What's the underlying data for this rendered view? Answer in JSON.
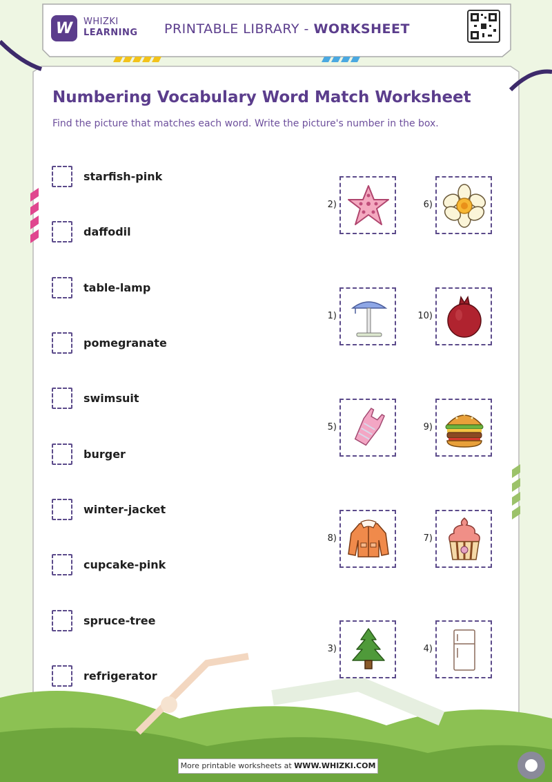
{
  "header": {
    "brand_line1": "WHIZKI",
    "brand_line2": "LEARNING",
    "logo_letter": "W",
    "library_label": "PRINTABLE LIBRARY - ",
    "library_strong": "WORKSHEET"
  },
  "worksheet": {
    "title": "Numbering Vocabulary Word Match Worksheet",
    "instructions": "Find the picture that matches each word. Write the picture's number in the box.",
    "words": [
      {
        "label": "starfish-pink"
      },
      {
        "label": "daffodil"
      },
      {
        "label": "table-lamp"
      },
      {
        "label": "pomegranate"
      },
      {
        "label": "swimsuit"
      },
      {
        "label": "burger"
      },
      {
        "label": "winter-jacket"
      },
      {
        "label": "cupcake-pink"
      },
      {
        "label": "spruce-tree"
      },
      {
        "label": "refrigerator"
      }
    ],
    "pictures": [
      {
        "number": "2)",
        "icon": "starfish-icon"
      },
      {
        "number": "6)",
        "icon": "daffodil-icon"
      },
      {
        "number": "1)",
        "icon": "table-lamp-icon"
      },
      {
        "number": "10)",
        "icon": "pomegranate-icon"
      },
      {
        "number": "5)",
        "icon": "swimsuit-icon"
      },
      {
        "number": "9)",
        "icon": "burger-icon"
      },
      {
        "number": "8)",
        "icon": "winter-jacket-icon"
      },
      {
        "number": "7)",
        "icon": "cupcake-icon"
      },
      {
        "number": "3)",
        "icon": "spruce-tree-icon"
      },
      {
        "number": "4)",
        "icon": "refrigerator-icon"
      }
    ]
  },
  "footer": {
    "text": "More printable worksheets at ",
    "url": "WWW.WHIZKI.COM"
  },
  "colors": {
    "brand_purple": "#5b3d8c",
    "frame_green": "#dfeec8",
    "hill_green": "#7db04a"
  }
}
